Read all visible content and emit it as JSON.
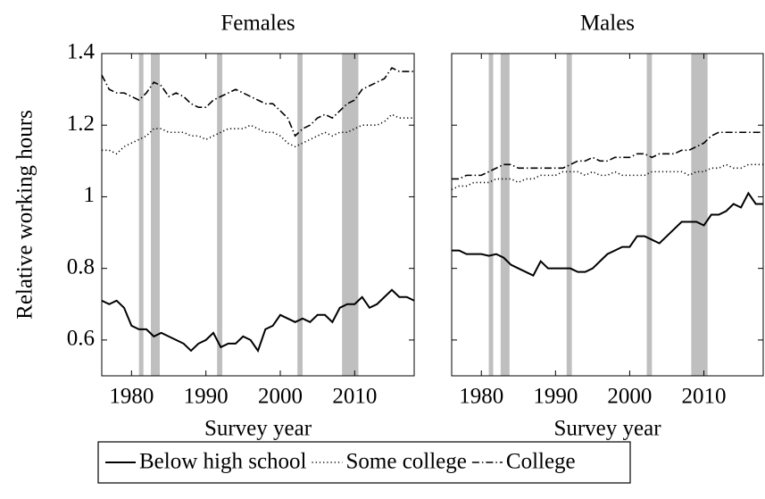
{
  "chart_data": [
    {
      "type": "line",
      "title": "Females",
      "x_label": "Survey year",
      "y_label": "Relative working hours",
      "x": [
        1976,
        1977,
        1978,
        1979,
        1980,
        1981,
        1982,
        1983,
        1984,
        1985,
        1986,
        1987,
        1988,
        1989,
        1990,
        1991,
        1992,
        1993,
        1994,
        1995,
        1996,
        1997,
        1998,
        1999,
        2000,
        2001,
        2002,
        2003,
        2004,
        2005,
        2006,
        2007,
        2008,
        2009,
        2010,
        2011,
        2012,
        2013,
        2014,
        2015,
        2016,
        2017,
        2018
      ],
      "xlim": [
        1976,
        2018
      ],
      "xticks": [
        1980,
        1990,
        2000,
        2010
      ],
      "ylim": [
        0.5,
        1.4
      ],
      "yticks": [
        0.6,
        0.8,
        1,
        1.2,
        1.4
      ],
      "shaded_periods": [
        [
          1981,
          1981.6
        ],
        [
          1982.6,
          1983.8
        ],
        [
          1991.5,
          1992.2
        ],
        [
          2002.3,
          2003
        ],
        [
          2008.3,
          2010.5
        ]
      ],
      "shade_color": "#bfbfbf",
      "series": [
        {
          "name": "Below high school",
          "color": "#000000",
          "style": "solid",
          "values": [
            0.71,
            0.7,
            0.71,
            0.69,
            0.64,
            0.63,
            0.63,
            0.61,
            0.62,
            0.61,
            0.6,
            0.59,
            0.57,
            0.59,
            0.6,
            0.62,
            0.58,
            0.59,
            0.59,
            0.61,
            0.6,
            0.57,
            0.63,
            0.64,
            0.67,
            0.66,
            0.65,
            0.66,
            0.65,
            0.67,
            0.67,
            0.65,
            0.69,
            0.7,
            0.7,
            0.72,
            0.69,
            0.7,
            0.72,
            0.74,
            0.72,
            0.72,
            0.71
          ]
        },
        {
          "name": "Some college",
          "color": "#000000",
          "style": "dotted",
          "values": [
            1.13,
            1.13,
            1.12,
            1.14,
            1.15,
            1.16,
            1.17,
            1.19,
            1.19,
            1.18,
            1.18,
            1.18,
            1.17,
            1.17,
            1.16,
            1.17,
            1.18,
            1.19,
            1.19,
            1.19,
            1.2,
            1.19,
            1.18,
            1.18,
            1.17,
            1.15,
            1.14,
            1.15,
            1.16,
            1.17,
            1.18,
            1.17,
            1.18,
            1.18,
            1.19,
            1.2,
            1.2,
            1.2,
            1.21,
            1.23,
            1.22,
            1.22,
            1.22
          ]
        },
        {
          "name": "College",
          "color": "#000000",
          "style": "dashdot",
          "values": [
            1.34,
            1.3,
            1.29,
            1.29,
            1.28,
            1.27,
            1.29,
            1.32,
            1.31,
            1.28,
            1.29,
            1.28,
            1.26,
            1.25,
            1.25,
            1.27,
            1.28,
            1.29,
            1.3,
            1.29,
            1.28,
            1.27,
            1.26,
            1.26,
            1.24,
            1.22,
            1.17,
            1.19,
            1.2,
            1.22,
            1.23,
            1.22,
            1.24,
            1.26,
            1.27,
            1.3,
            1.31,
            1.32,
            1.33,
            1.36,
            1.35,
            1.35,
            1.35
          ]
        }
      ]
    },
    {
      "type": "line",
      "title": "Males",
      "x_label": "Survey year",
      "x": [
        1976,
        1977,
        1978,
        1979,
        1980,
        1981,
        1982,
        1983,
        1984,
        1985,
        1986,
        1987,
        1988,
        1989,
        1990,
        1991,
        1992,
        1993,
        1994,
        1995,
        1996,
        1997,
        1998,
        1999,
        2000,
        2001,
        2002,
        2003,
        2004,
        2005,
        2006,
        2007,
        2008,
        2009,
        2010,
        2011,
        2012,
        2013,
        2014,
        2015,
        2016,
        2017,
        2018
      ],
      "xlim": [
        1976,
        2018
      ],
      "xticks": [
        1980,
        1990,
        2000,
        2010
      ],
      "ylim": [
        0.5,
        1.4
      ],
      "yticks": [
        0.6,
        0.8,
        1,
        1.2,
        1.4
      ],
      "shaded_periods": [
        [
          1981,
          1981.6
        ],
        [
          1982.6,
          1983.8
        ],
        [
          1991.5,
          1992.2
        ],
        [
          2002.3,
          2003
        ],
        [
          2008.3,
          2010.5
        ]
      ],
      "shade_color": "#bfbfbf",
      "series": [
        {
          "name": "Below high school",
          "color": "#000000",
          "style": "solid",
          "values": [
            0.85,
            0.85,
            0.84,
            0.84,
            0.84,
            0.835,
            0.84,
            0.83,
            0.81,
            0.8,
            0.79,
            0.78,
            0.82,
            0.8,
            0.8,
            0.8,
            0.8,
            0.79,
            0.79,
            0.8,
            0.82,
            0.84,
            0.85,
            0.86,
            0.86,
            0.89,
            0.89,
            0.88,
            0.87,
            0.89,
            0.91,
            0.93,
            0.93,
            0.93,
            0.92,
            0.95,
            0.95,
            0.96,
            0.98,
            0.97,
            1.01,
            0.98,
            0.98
          ]
        },
        {
          "name": "Some college",
          "color": "#000000",
          "style": "dotted",
          "values": [
            1.02,
            1.03,
            1.03,
            1.04,
            1.04,
            1.04,
            1.05,
            1.05,
            1.05,
            1.04,
            1.05,
            1.05,
            1.06,
            1.06,
            1.06,
            1.07,
            1.07,
            1.07,
            1.06,
            1.07,
            1.06,
            1.06,
            1.07,
            1.06,
            1.06,
            1.06,
            1.06,
            1.07,
            1.07,
            1.07,
            1.07,
            1.07,
            1.06,
            1.07,
            1.07,
            1.08,
            1.08,
            1.09,
            1.08,
            1.08,
            1.09,
            1.09,
            1.09
          ]
        },
        {
          "name": "College",
          "color": "#000000",
          "style": "dashdot",
          "values": [
            1.05,
            1.05,
            1.06,
            1.06,
            1.06,
            1.07,
            1.08,
            1.09,
            1.09,
            1.08,
            1.08,
            1.08,
            1.08,
            1.08,
            1.08,
            1.08,
            1.09,
            1.1,
            1.1,
            1.11,
            1.1,
            1.1,
            1.11,
            1.11,
            1.11,
            1.12,
            1.12,
            1.11,
            1.12,
            1.12,
            1.12,
            1.13,
            1.13,
            1.14,
            1.15,
            1.17,
            1.18,
            1.18,
            1.18,
            1.18,
            1.18,
            1.18,
            1.18
          ]
        }
      ]
    }
  ]
}
